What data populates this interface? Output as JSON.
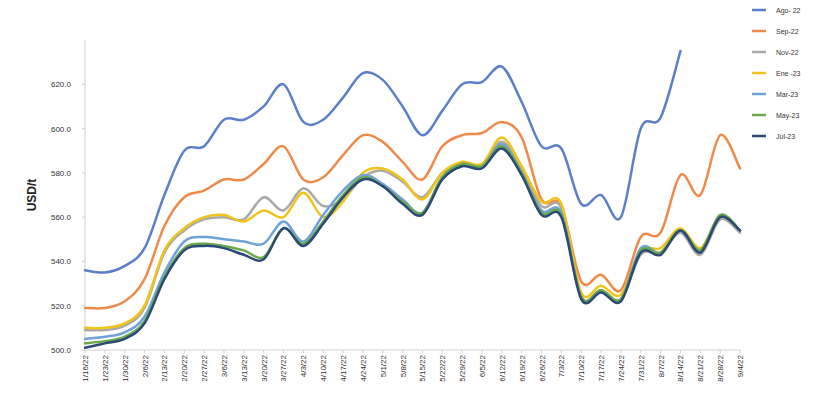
{
  "chart_data": {
    "type": "line",
    "y_label": "USD/t",
    "categories": [
      "1/16/22",
      "1/23/22",
      "1/30/22",
      "2/6/22",
      "2/13/22",
      "2/20/22",
      "2/27/22",
      "3/6/22",
      "3/13/22",
      "3/20/22",
      "3/27/22",
      "4/3/22",
      "4/10/22",
      "4/17/22",
      "4/24/22",
      "5/1/22",
      "5/8/22",
      "5/15/22",
      "5/22/22",
      "5/29/22",
      "6/5/22",
      "6/12/22",
      "6/19/22",
      "6/26/22",
      "7/3/22",
      "7/10/22",
      "7/17/22",
      "7/24/22",
      "7/31/22",
      "8/7/22",
      "8/14/22",
      "8/21/22",
      "8/28/22",
      "9/4/22"
    ],
    "series": [
      {
        "name": "Ago- 22",
        "color": "#5b7fc9",
        "values": [
          536,
          535,
          538,
          546,
          570,
          590,
          592,
          604,
          604,
          610,
          620,
          603,
          604,
          614,
          625,
          622,
          610,
          597,
          608,
          620,
          621,
          628,
          612,
          592,
          591,
          566,
          570,
          560,
          600,
          605,
          635,
          null,
          null,
          null
        ]
      },
      {
        "name": "Sep-22",
        "color": "#f08a4b",
        "values": [
          519,
          519,
          522,
          532,
          556,
          569,
          572,
          577,
          577,
          584,
          592,
          577,
          578,
          588,
          597,
          594,
          585,
          577,
          592,
          597,
          598,
          603,
          596,
          568,
          565,
          531,
          534,
          527,
          551,
          553,
          579,
          570,
          597,
          582
        ]
      },
      {
        "name": "Nov-22",
        "color": "#a9a9a9",
        "values": [
          509,
          509,
          511,
          519,
          544,
          554,
          559,
          560,
          559,
          569,
          563,
          573,
          565,
          568,
          578,
          581,
          576,
          569,
          580,
          584,
          584,
          594,
          582,
          565,
          564,
          524,
          527,
          523,
          543,
          544,
          553,
          543,
          559,
          553
        ]
      },
      {
        "name": "Ene -23",
        "color": "#f2c318",
        "values": [
          510,
          510,
          512,
          520,
          545,
          555,
          560,
          561,
          558,
          563,
          560,
          571,
          560,
          567,
          580,
          582,
          577,
          568,
          580,
          585,
          584,
          596,
          583,
          567,
          566,
          526,
          529,
          525,
          545,
          546,
          555,
          546,
          560,
          554
        ]
      },
      {
        "name": "Mar-23",
        "color": "#6fa3d8",
        "values": [
          505,
          506,
          508,
          515,
          535,
          549,
          551,
          550,
          549,
          548,
          558,
          549,
          561,
          572,
          579,
          575,
          568,
          562,
          578,
          584,
          583,
          593,
          580,
          563,
          562,
          524,
          527,
          523,
          546,
          544,
          554,
          545,
          560,
          554
        ]
      },
      {
        "name": "May-23",
        "color": "#6aaa4a",
        "values": [
          503,
          504,
          506,
          513,
          533,
          546,
          548,
          547,
          545,
          542,
          555,
          548,
          558,
          570,
          578,
          574,
          567,
          562,
          578,
          584,
          583,
          592,
          580,
          562,
          561,
          524,
          527,
          523,
          545,
          544,
          554,
          545,
          561,
          554
        ]
      },
      {
        "name": "Jul-23",
        "color": "#2b4a78",
        "values": [
          501,
          503,
          505,
          512,
          532,
          545,
          547,
          546,
          543,
          541,
          555,
          547,
          557,
          569,
          577,
          574,
          566,
          561,
          577,
          583,
          582,
          591,
          579,
          561,
          560,
          523,
          526,
          522,
          544,
          543,
          554,
          544,
          560,
          554
        ]
      }
    ],
    "ylim": [
      500,
      640
    ],
    "yticks": [
      {
        "value": 500,
        "label": "500.0"
      },
      {
        "value": 520,
        "label": "520.0"
      },
      {
        "value": 540,
        "label": "540.0"
      },
      {
        "value": 560,
        "label": "560.0"
      },
      {
        "value": 580,
        "label": "580.0"
      },
      {
        "value": 600,
        "label": "600.0"
      },
      {
        "value": 620,
        "label": "620.0"
      }
    ],
    "grid": false,
    "legend": "upper right"
  }
}
